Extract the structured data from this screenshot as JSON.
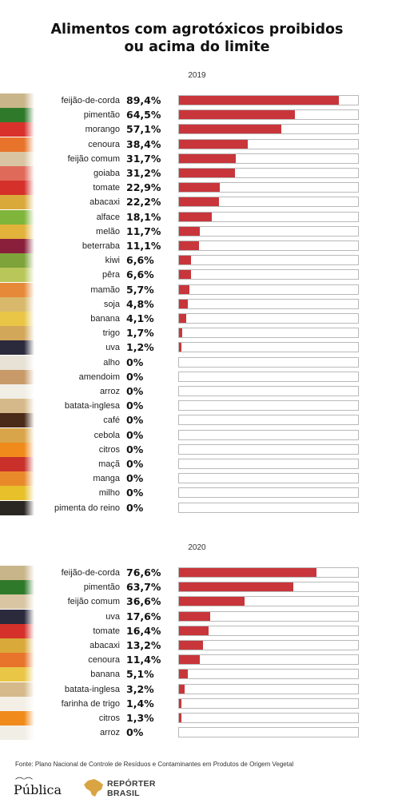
{
  "title": {
    "line1": "Alimentos com agrotóxicos proibidos",
    "line2": "ou acima do limite"
  },
  "chart_data": [
    {
      "type": "bar",
      "orientation": "horizontal",
      "subtitle": "2019",
      "xlim": [
        0,
        100
      ],
      "bar_color": "#c8363b",
      "categories": [
        "feijão-de-corda",
        "pimentão",
        "morango",
        "cenoura",
        "feijão comum",
        "goiaba",
        "tomate",
        "abacaxi",
        "alface",
        "melão",
        "beterraba",
        "kiwi",
        "pêra",
        "mamão",
        "soja",
        "banana",
        "trigo",
        "uva",
        "alho",
        "amendoim",
        "arroz",
        "batata-inglesa",
        "café",
        "cebola",
        "citros",
        "maçã",
        "manga",
        "milho",
        "pimenta do reino"
      ],
      "values": [
        89.4,
        64.5,
        57.1,
        38.4,
        31.7,
        31.2,
        22.9,
        22.2,
        18.1,
        11.7,
        11.1,
        6.6,
        6.6,
        5.7,
        4.8,
        4.1,
        1.7,
        1.2,
        0,
        0,
        0,
        0,
        0,
        0,
        0,
        0,
        0,
        0,
        0
      ],
      "value_labels": [
        "89,4%",
        "64,5%",
        "57,1%",
        "38,4%",
        "31,7%",
        "31,2%",
        "22,9%",
        "22,2%",
        "18,1%",
        "11,7%",
        "11,1%",
        "6,6%",
        "6,6%",
        "5,7%",
        "4,8%",
        "4,1%",
        "1,7%",
        "1,2%",
        "0%",
        "0%",
        "0%",
        "0%",
        "0%",
        "0%",
        "0%",
        "0%",
        "0%",
        "0%",
        "0%"
      ],
      "thumb_colors": [
        "#c9b58a",
        "#2f7a2a",
        "#d8312c",
        "#e8732a",
        "#d9c5a2",
        "#e06a5a",
        "#d6302a",
        "#d9a93a",
        "#7fb53a",
        "#e2b23a",
        "#8a1f3c",
        "#7da33a",
        "#b8c65a",
        "#e68a3a",
        "#d8b86a",
        "#e9c646",
        "#d2a75a",
        "#2b2a3d",
        "#e8e2d6",
        "#c89a6a",
        "#f1eee6",
        "#d6b98a",
        "#4a2a18",
        "#d9a54a",
        "#f08a1a",
        "#c9302a",
        "#e88a2a",
        "#e8c02a",
        "#2a2622"
      ]
    },
    {
      "type": "bar",
      "orientation": "horizontal",
      "subtitle": "2020",
      "xlim": [
        0,
        100
      ],
      "bar_color": "#c8363b",
      "categories": [
        "feijão-de-corda",
        "pimentão",
        "feijão comum",
        "uva",
        "tomate",
        "abacaxi",
        "cenoura",
        "banana",
        "batata-inglesa",
        "farinha de trigo",
        "citros",
        "arroz"
      ],
      "values": [
        76.6,
        63.7,
        36.6,
        17.6,
        16.4,
        13.2,
        11.4,
        5.1,
        3.2,
        1.4,
        1.3,
        0
      ],
      "value_labels": [
        "76,6%",
        "63,7%",
        "36,6%",
        "17,6%",
        "16,4%",
        "13,2%",
        "11,4%",
        "5,1%",
        "3,2%",
        "1,4%",
        "1,3%",
        "0%"
      ],
      "thumb_colors": [
        "#c9b58a",
        "#2f7a2a",
        "#d9c5a2",
        "#2b2a3d",
        "#d6302a",
        "#d9a93a",
        "#e8732a",
        "#e9c646",
        "#d6b98a",
        "#f3efe6",
        "#f08a1a",
        "#f1eee6"
      ]
    }
  ],
  "footer": {
    "source": "Fonte: Plano Nacional de Controle de Resíduos e Contaminantes em Produtos de Origem Vegetal",
    "logo_publica": "Pública",
    "logo_reporter_line1": "REPÓRTER",
    "logo_reporter_line2": "BRASIL"
  }
}
